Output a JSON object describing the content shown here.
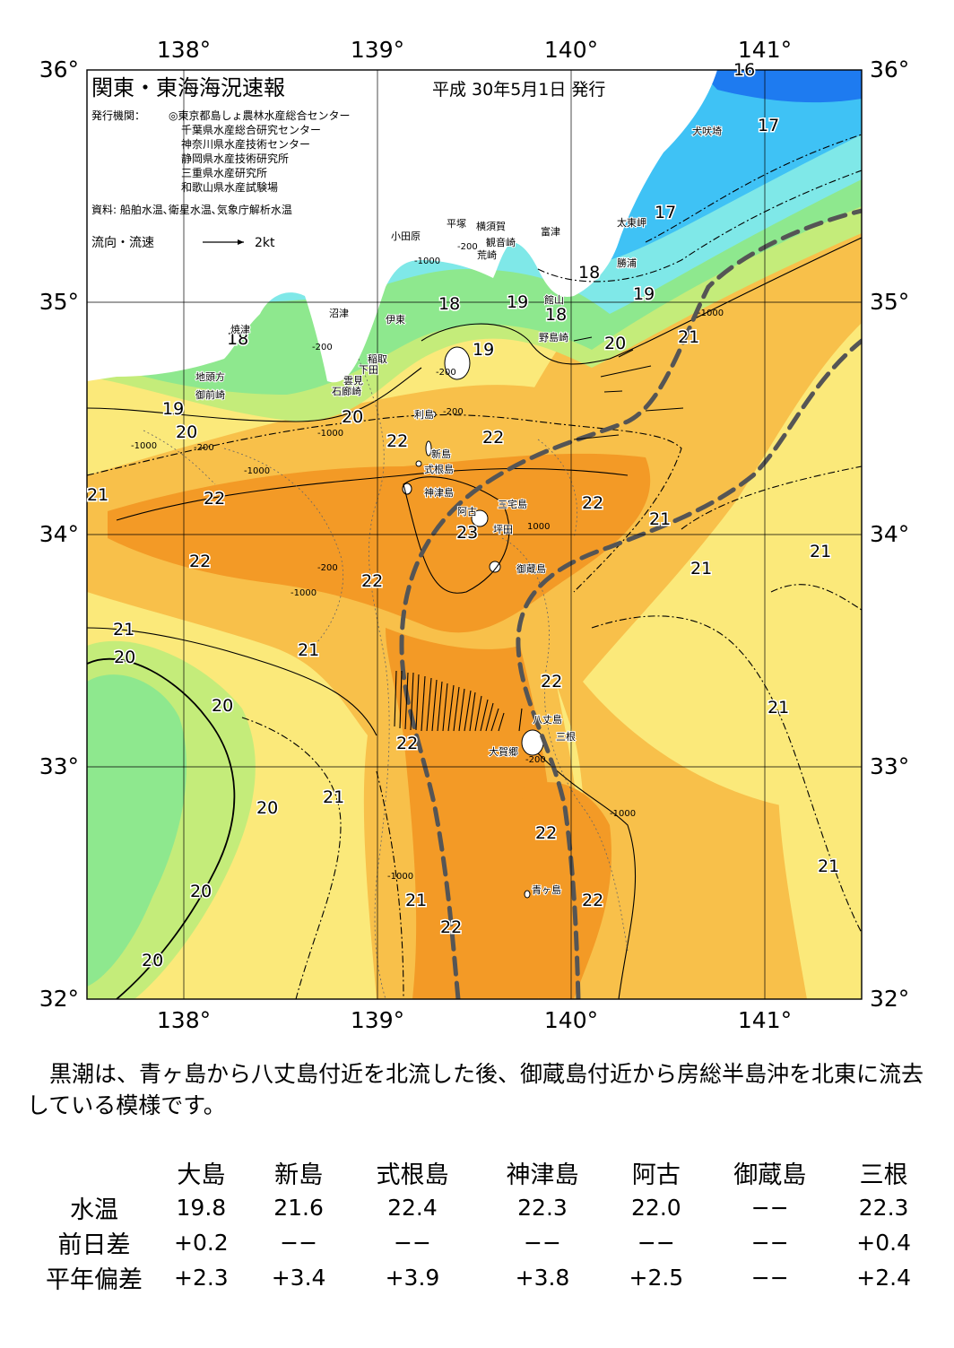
{
  "header": {
    "title": "関東・東海海況速報",
    "issued": "平成 30年5月1日 発行",
    "issuer_label": "発行機関：",
    "issuers": [
      "◎東京都島しょ農林水産総合センター",
      "千葉県水産総合研究センター",
      "神奈川県水産技術センター",
      "静岡県水産技術研究所",
      "三重県水産研究所",
      "和歌山県水産試験場"
    ],
    "source": "資料: 船舶水温､衛星水温､気象庁解析水温",
    "legend_label": "流向・流速",
    "legend_speed": "2kt"
  },
  "axes": {
    "lon_labels": [
      "138°",
      "139°",
      "140°",
      "141°"
    ],
    "lat_labels": [
      "36°",
      "35°",
      "34°",
      "33°",
      "32°"
    ]
  },
  "colors": {
    "sst_16": "#1e7bf0",
    "sst_17": "#3fc2f5",
    "sst_18": "#7fe8e8",
    "sst_19": "#8ee88e",
    "sst_20": "#c4ec7a",
    "sst_21": "#fbe97a",
    "sst_22": "#f8c04a",
    "sst_23": "#f39a26",
    "land": "#ffffff",
    "kuroshio_axis": "#555555"
  },
  "isotherm_labels": [
    {
      "text": "16"
    },
    {
      "text": "17"
    },
    {
      "text": "17"
    },
    {
      "text": "19"
    },
    {
      "text": "18"
    },
    {
      "text": "18"
    },
    {
      "text": "19"
    },
    {
      "text": "19"
    },
    {
      "text": "18"
    },
    {
      "text": "20"
    },
    {
      "text": "21"
    },
    {
      "text": "18"
    },
    {
      "text": "19"
    },
    {
      "text": "20"
    },
    {
      "text": "20"
    },
    {
      "text": "22"
    },
    {
      "text": "22"
    },
    {
      "text": "21"
    },
    {
      "text": "22"
    },
    {
      "text": "22"
    },
    {
      "text": "23"
    },
    {
      "text": "21"
    },
    {
      "text": "22"
    },
    {
      "text": "22"
    },
    {
      "text": "21"
    },
    {
      "text": "21"
    },
    {
      "text": "21"
    },
    {
      "text": "20"
    },
    {
      "text": "21"
    },
    {
      "text": "20"
    },
    {
      "text": "22"
    },
    {
      "text": "22"
    },
    {
      "text": "21"
    },
    {
      "text": "21"
    },
    {
      "text": "20"
    },
    {
      "text": "22"
    },
    {
      "text": "20"
    },
    {
      "text": "21"
    },
    {
      "text": "22"
    },
    {
      "text": "22"
    },
    {
      "text": "20"
    },
    {
      "text": "21"
    }
  ],
  "place_names": [
    "犬吠埼",
    "太東岬",
    "勝浦",
    "富津",
    "横須賀",
    "観音崎",
    "平塚",
    "荒崎",
    "小田原",
    "館山",
    "野島崎",
    "沼津",
    "伊東",
    "焼津",
    "稲取",
    "下田",
    "地頭方",
    "御前崎",
    "雲見",
    "石廊崎",
    "利島",
    "新島",
    "式根島",
    "神津島",
    "三宅島",
    "阿古",
    "坪田",
    "御蔵島",
    "八丈島",
    "三根",
    "大賀郷",
    "青ヶ島"
  ],
  "summary": "黒潮は、青ヶ島から八丈島付近を北流した後、御蔵島付近から房総半島沖を北東に流去している模様です。",
  "table": {
    "stations": [
      "大島",
      "新島",
      "式根島",
      "神津島",
      "阿古",
      "御蔵島",
      "三根"
    ],
    "rows": [
      {
        "label": "水温",
        "values": [
          "19.8",
          "21.6",
          "22.4",
          "22.3",
          "22.0",
          "−−",
          "22.3"
        ]
      },
      {
        "label": "前日差",
        "values": [
          "+0.2",
          "−−",
          "−−",
          "−−",
          "−−",
          "−−",
          "+0.4"
        ]
      },
      {
        "label": "平年偏差",
        "values": [
          "+2.3",
          "+3.4",
          "+3.9",
          "+3.8",
          "+2.5",
          "−−",
          "+2.4"
        ]
      }
    ]
  }
}
